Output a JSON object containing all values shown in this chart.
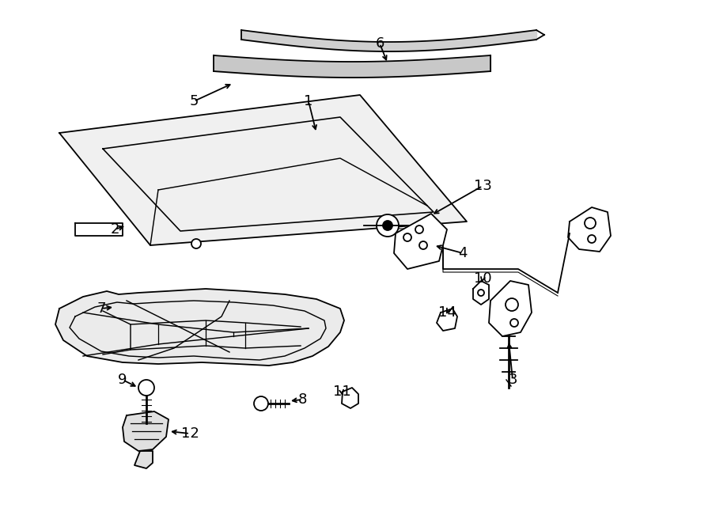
{
  "bg_color": "#ffffff",
  "line_color": "#000000",
  "lw": 1.3,
  "fontsize": 13,
  "figsize": [
    9.0,
    6.61
  ],
  "dpi": 100
}
